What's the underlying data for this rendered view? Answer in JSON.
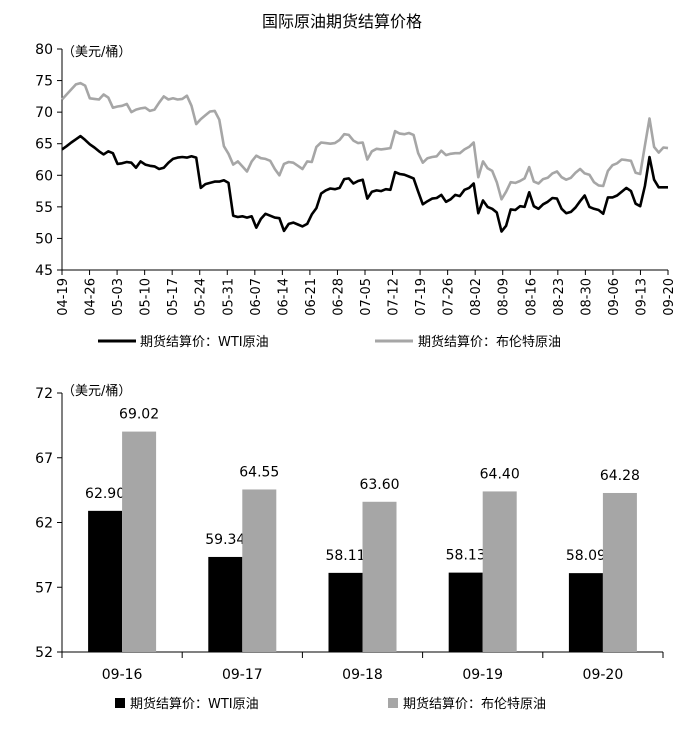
{
  "chart_data": [
    {
      "type": "line",
      "title": "国际原油期货结算价格",
      "unit": "（美元/桶）",
      "ylim": [
        45,
        80
      ],
      "yticks": [
        45,
        50,
        55,
        60,
        65,
        70,
        75,
        80
      ],
      "xtick_labels": [
        "04-19",
        "04-26",
        "05-03",
        "05-10",
        "05-17",
        "05-24",
        "05-31",
        "06-07",
        "06-14",
        "06-21",
        "06-28",
        "07-05",
        "07-12",
        "07-19",
        "07-26",
        "08-02",
        "08-09",
        "08-16",
        "08-23",
        "08-30",
        "09-06",
        "09-13",
        "09-20"
      ],
      "grid": false,
      "legend_position": "bottom",
      "series": [
        {
          "name": "期货结算价：WTI原油",
          "color": "#000000",
          "values": [
            64.1,
            64.6,
            65.2,
            65.7,
            66.2,
            65.6,
            64.9,
            64.4,
            63.8,
            63.3,
            63.8,
            63.5,
            61.8,
            61.9,
            62.1,
            62.0,
            61.2,
            62.2,
            61.7,
            61.5,
            61.4,
            61.0,
            61.2,
            62.0,
            62.6,
            62.8,
            62.9,
            62.8,
            63.0,
            62.8,
            58.0,
            58.6,
            58.8,
            59.0,
            59.0,
            59.2,
            58.8,
            53.6,
            53.4,
            53.5,
            53.3,
            53.5,
            51.7,
            53.1,
            53.9,
            53.6,
            53.3,
            53.2,
            51.2,
            52.3,
            52.5,
            52.2,
            51.9,
            52.3,
            53.8,
            54.8,
            57.1,
            57.6,
            57.9,
            57.8,
            58.0,
            59.4,
            59.5,
            58.7,
            59.1,
            59.3,
            56.3,
            57.4,
            57.6,
            57.5,
            57.8,
            57.7,
            60.5,
            60.2,
            60.1,
            59.8,
            59.5,
            57.4,
            55.4,
            55.9,
            56.3,
            56.4,
            56.9,
            55.8,
            56.2,
            56.9,
            56.7,
            57.7,
            58.0,
            58.7,
            54.0,
            56.0,
            55.0,
            54.7,
            54.1,
            51.1,
            52.0,
            54.6,
            54.5,
            55.1,
            55.0,
            57.3,
            55.1,
            54.7,
            55.4,
            55.8,
            56.4,
            56.3,
            54.7,
            54.0,
            54.2,
            54.9,
            55.9,
            56.8,
            55.0,
            54.7,
            54.5,
            53.9,
            56.5,
            56.5,
            56.8,
            57.4,
            58.0,
            57.5,
            55.5,
            55.1,
            58.3,
            62.9,
            59.3,
            58.1,
            58.1,
            58.1
          ],
          "label": "期货结算价：WTI原油"
        },
        {
          "name": "期货结算价：布伦特原油",
          "color": "#a6a6a6",
          "values": [
            72.0,
            72.8,
            73.6,
            74.4,
            74.6,
            74.2,
            72.2,
            72.1,
            72.0,
            72.8,
            72.3,
            70.7,
            70.9,
            71.0,
            71.3,
            70.0,
            70.4,
            70.6,
            70.7,
            70.2,
            70.4,
            71.5,
            72.5,
            72.0,
            72.2,
            72.0,
            72.1,
            72.6,
            71.0,
            68.1,
            68.9,
            69.5,
            70.1,
            70.2,
            68.8,
            64.6,
            63.4,
            61.7,
            62.2,
            61.4,
            60.6,
            62.2,
            63.1,
            62.7,
            62.6,
            62.3,
            61.0,
            60.0,
            61.8,
            62.1,
            62.0,
            61.5,
            61.0,
            62.2,
            62.1,
            64.5,
            65.2,
            65.1,
            65.0,
            65.1,
            65.6,
            66.5,
            66.4,
            65.5,
            65.1,
            65.2,
            62.5,
            63.8,
            64.2,
            64.1,
            64.2,
            64.3,
            67.0,
            66.6,
            66.5,
            66.7,
            66.4,
            63.5,
            62.0,
            62.7,
            62.9,
            63.0,
            63.9,
            63.2,
            63.4,
            63.5,
            63.5,
            64.1,
            64.5,
            65.2,
            59.7,
            62.2,
            61.1,
            60.7,
            58.9,
            56.2,
            57.4,
            58.9,
            58.8,
            59.1,
            59.5,
            61.3,
            59.0,
            58.7,
            59.4,
            59.6,
            60.3,
            60.6,
            59.7,
            59.3,
            59.6,
            60.4,
            61.0,
            60.3,
            60.1,
            58.9,
            58.4,
            58.3,
            60.7,
            61.6,
            61.9,
            62.5,
            62.4,
            62.3,
            60.4,
            60.2,
            64.7,
            69.0,
            64.5,
            63.6,
            64.4,
            64.3
          ],
          "label": "期货结算价：布伦特原油"
        }
      ]
    },
    {
      "type": "bar",
      "unit": "（美元/桶）",
      "ylim": [
        52,
        72
      ],
      "yticks": [
        52,
        57,
        62,
        67,
        72
      ],
      "categories": [
        "09-16",
        "09-17",
        "09-18",
        "09-19",
        "09-20"
      ],
      "grid": false,
      "legend_position": "bottom",
      "series": [
        {
          "name": "期货结算价：WTI原油",
          "color": "#000000",
          "values": [
            62.9,
            59.34,
            58.11,
            58.13,
            58.09
          ],
          "labels": [
            "62.90",
            "59.34",
            "58.11",
            "58.13",
            "58.09"
          ],
          "label": "期货结算价：WTI原油"
        },
        {
          "name": "期货结算价：布伦特原油",
          "color": "#a6a6a6",
          "values": [
            69.02,
            64.55,
            63.6,
            64.4,
            64.28
          ],
          "labels": [
            "69.02",
            "64.55",
            "63.60",
            "64.40",
            "64.28"
          ],
          "label": "期货结算价：布伦特原油"
        }
      ]
    }
  ]
}
